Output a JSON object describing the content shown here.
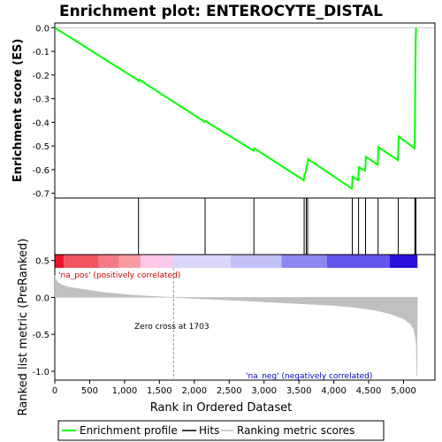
{
  "chart_data": {
    "type": "line",
    "title": "Enrichment plot: ENTEROCYTE_DISTAL",
    "x_axis": {
      "label": "Rank in Ordered Dataset",
      "range": [
        0,
        5450
      ],
      "ticks": [
        0,
        500,
        1000,
        1500,
        2000,
        2500,
        3000,
        3500,
        4000,
        4500,
        5000
      ],
      "tick_labels": [
        "0",
        "500",
        "1,000",
        "1,500",
        "2,000",
        "2,500",
        "3,000",
        "3,500",
        "4,000",
        "4,500",
        "5,000"
      ]
    },
    "top_panel": {
      "ylabel": "Enrichment score (ES)",
      "ylim": [
        -0.72,
        0.02
      ],
      "yticks": [
        0.0,
        -0.1,
        -0.2,
        -0.3,
        -0.4,
        -0.5,
        -0.6,
        -0.7
      ],
      "ytick_labels": [
        "0.0",
        "-0.1",
        "-0.2",
        "-0.3",
        "-0.4",
        "-0.5",
        "-0.6",
        "-0.7"
      ],
      "series": [
        {
          "name": "Enrichment profile",
          "color": "#00ff00",
          "x": [
            0,
            1198,
            1200,
            1210,
            2150,
            2160,
            2850,
            2860,
            3570,
            3580,
            3600,
            3610,
            3620,
            3630,
            4260,
            4270,
            4350,
            4360,
            4450,
            4460,
            4630,
            4640,
            4920,
            4930,
            5160,
            5165,
            5170,
            5175,
            5180
          ],
          "y": [
            0.0,
            -0.222,
            -0.225,
            -0.22,
            -0.398,
            -0.395,
            -0.52,
            -0.51,
            -0.645,
            -0.62,
            -0.61,
            -0.585,
            -0.58,
            -0.555,
            -0.68,
            -0.63,
            -0.645,
            -0.59,
            -0.605,
            -0.545,
            -0.58,
            -0.505,
            -0.56,
            -0.46,
            -0.51,
            -0.345,
            -0.175,
            -0.04,
            0.0
          ]
        }
      ]
    },
    "hits": {
      "name": "Hits",
      "color": "#000000",
      "x": [
        1200,
        2155,
        2855,
        3575,
        3605,
        3625,
        4265,
        4355,
        4455,
        4635,
        4925,
        5163,
        5168,
        5173,
        5178
      ]
    },
    "color_bar": {
      "segments": [
        {
          "x0": 0,
          "x1": 130,
          "color": "#e8142a"
        },
        {
          "x0": 130,
          "x1": 630,
          "color": "#f2555f"
        },
        {
          "x0": 630,
          "x1": 920,
          "color": "#f47a85"
        },
        {
          "x0": 920,
          "x1": 1230,
          "color": "#f89aa0"
        },
        {
          "x0": 1230,
          "x1": 1700,
          "color": "#fcc8e8"
        },
        {
          "x0": 1700,
          "x1": 2520,
          "color": "#d9d6fa"
        },
        {
          "x0": 2520,
          "x1": 3250,
          "color": "#c4c0f8"
        },
        {
          "x0": 3250,
          "x1": 3900,
          "color": "#8e87f2"
        },
        {
          "x0": 3900,
          "x1": 4800,
          "color": "#6455ec"
        },
        {
          "x0": 4800,
          "x1": 5200,
          "color": "#2a10d8"
        }
      ]
    },
    "bottom_panel": {
      "ylabel": "Ranked list metric (PreRanked)",
      "ylim": [
        -1.12,
        0.58
      ],
      "yticks": [
        0.5,
        0.0,
        -0.5,
        -1.0
      ],
      "ytick_labels": [
        "0.5",
        "0.0",
        "-0.5",
        "-1.0"
      ],
      "series": [
        {
          "name": "Ranking metric scores",
          "color": "#c0c0c0",
          "x": [
            0,
            10,
            50,
            100,
            200,
            400,
            700,
            1000,
            1300,
            1703,
            2000,
            2500,
            3000,
            3500,
            4000,
            4300,
            4600,
            4800,
            5000,
            5100,
            5150,
            5180,
            5190,
            5200
          ],
          "y": [
            0.3,
            0.25,
            0.2,
            0.17,
            0.14,
            0.11,
            0.07,
            0.04,
            0.02,
            0.0,
            -0.015,
            -0.035,
            -0.06,
            -0.085,
            -0.11,
            -0.135,
            -0.175,
            -0.22,
            -0.29,
            -0.36,
            -0.44,
            -0.6,
            -1.06,
            0.0
          ]
        }
      ],
      "zero_cross": 1703
    },
    "annotations": {
      "pos_label": "'na_pos' (positively correlated)",
      "neg_label": "'na_neg' (negatively correlated)",
      "zero_cross_label": "Zero cross at 1703"
    },
    "legend": {
      "placement": "bottom",
      "entries": [
        {
          "label": "Enrichment profile",
          "color": "#00ff00"
        },
        {
          "label": "Hits",
          "color": "#000000"
        },
        {
          "label": "Ranking metric scores",
          "color": "#c0c0c0"
        }
      ]
    }
  }
}
